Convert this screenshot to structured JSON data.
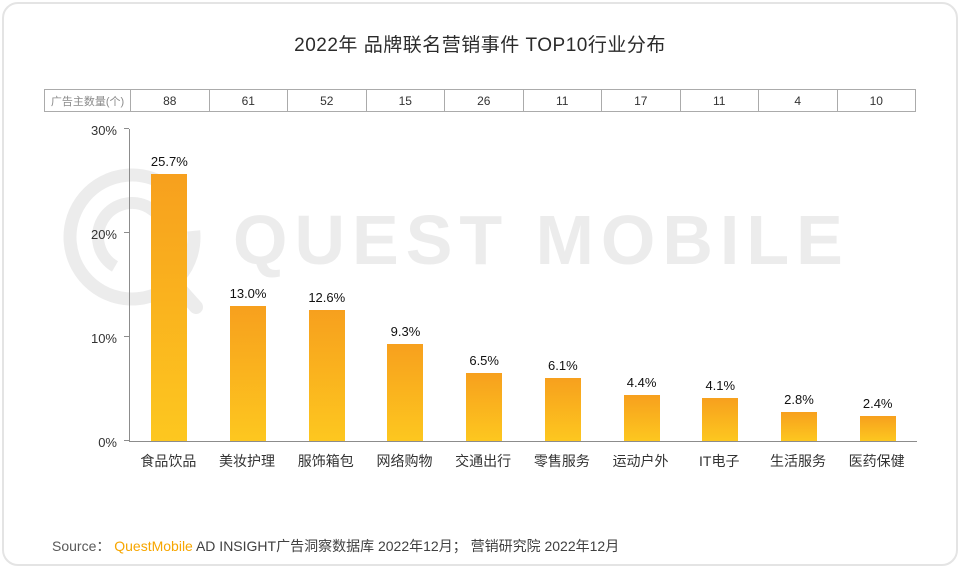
{
  "title": "2022年 品牌联名营销事件 TOP10行业分布",
  "chart_data": {
    "type": "bar",
    "title": "2022年 品牌联名营销事件 TOP10行业分布",
    "categories": [
      "食品饮品",
      "美妆护理",
      "服饰箱包",
      "网络购物",
      "交通出行",
      "零售服务",
      "运动户外",
      "IT电子",
      "生活服务",
      "医药保健"
    ],
    "values": [
      25.7,
      13.0,
      12.6,
      9.3,
      6.5,
      6.1,
      4.4,
      4.1,
      2.8,
      2.4
    ],
    "labels": [
      "25.7%",
      "13.0%",
      "12.6%",
      "9.3%",
      "6.5%",
      "6.1%",
      "4.4%",
      "4.1%",
      "2.8%",
      "2.4%"
    ],
    "advertiser_row_label": "广告主数量(个)",
    "advertiser_counts": [
      "88",
      "61",
      "52",
      "15",
      "26",
      "11",
      "17",
      "11",
      "4",
      "10"
    ],
    "xlabel": "",
    "ylabel": "",
    "ylim": [
      0,
      30
    ],
    "yticks": [
      "0%",
      "10%",
      "20%",
      "30%"
    ],
    "grid": false,
    "legend": false,
    "bar_color_top": "#F7A01E",
    "bar_color_bottom": "#FDC71F"
  },
  "watermark": {
    "text": "QUEST MOBILE"
  },
  "source": {
    "prefix": "Source：",
    "brand": "QuestMobile",
    "rest": " AD INSIGHT广告洞察数据库 2022年12月； 营销研究院 2022年12月"
  }
}
